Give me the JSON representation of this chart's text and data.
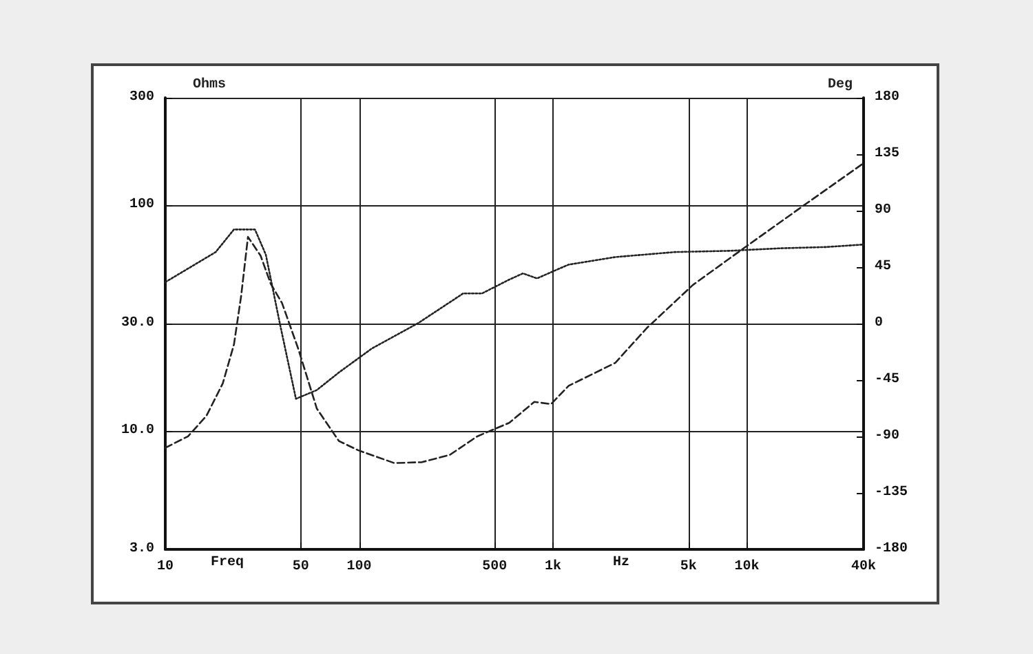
{
  "chart_data": {
    "type": "line",
    "ylabel": "Ohms",
    "y2label": "Deg",
    "annotations": [
      "Freq",
      "Hz"
    ],
    "log": "xy",
    "xlim": [
      10,
      40000
    ],
    "xticks": [
      10,
      50,
      100,
      500,
      {
        "value": 1000,
        "label": "1k"
      },
      {
        "value": 5000,
        "label": "5k"
      },
      {
        "value": 10000,
        "label": "10k"
      },
      {
        "value": 40000,
        "label": "40k"
      }
    ],
    "ylim": [
      3,
      300
    ],
    "yticks": [
      {
        "value": 3,
        "label": "3.0"
      },
      {
        "value": 10,
        "label": "10.0"
      },
      {
        "value": 30,
        "label": "30.0"
      },
      100,
      300
    ],
    "y2lim": [
      -180,
      180
    ],
    "y2ticks": [
      -180,
      -135,
      -90,
      -45,
      0,
      45,
      90,
      135,
      180
    ],
    "grid": true,
    "marker": "none",
    "series": [
      {
        "color": "#222222",
        "line_style": "dashed",
        "x": [
          10,
          13.1,
          16.3,
          19.8,
          22.6,
          24.6,
          26.7,
          31,
          35,
          40,
          48.6,
          60.5,
          78.6,
          98.6,
          152,
          211,
          294,
          406,
          594,
          801,
          978,
          1085,
          1205,
          2095,
          3040,
          5270,
          9640,
          20600,
          40000
        ],
        "values": [
          8.45,
          9.5,
          11.7,
          16.3,
          24.2,
          39.5,
          72.6,
          60,
          45,
          37,
          23.1,
          12.6,
          9.06,
          8.25,
          7.23,
          7.3,
          7.87,
          9.49,
          10.9,
          13.5,
          13.2,
          14.5,
          15.9,
          20.1,
          28.6,
          44.5,
          64.7,
          103,
          154
        ]
      },
      {
        "color": "#222222",
        "line_style": "dotted",
        "axis": "y2",
        "x": [
          10,
          18.2,
          22.6,
          29,
          33,
          39,
          47.2,
          60.5,
          78.6,
          116,
          200,
          344,
          430,
          594,
          700,
          827,
          1085,
          1205,
          2095,
          4250,
          8200,
          14800,
          25600,
          40000
        ],
        "values": [
          33,
          57,
          75,
          75,
          55,
          0,
          -60,
          -53,
          -39,
          -20,
          0,
          24,
          24,
          35,
          40,
          36,
          44,
          47,
          53,
          57,
          58,
          60,
          61,
          63
        ]
      }
    ]
  }
}
